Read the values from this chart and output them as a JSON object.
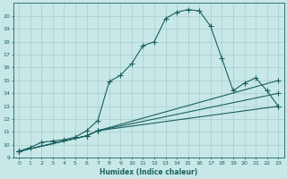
{
  "xlabel": "Humidex (Indice chaleur)",
  "xlim": [
    -0.5,
    23.5
  ],
  "ylim": [
    9,
    21
  ],
  "bg_color": "#c8e8e8",
  "grid_color": "#a8cccc",
  "line_color": "#1a6060",
  "line1_x": [
    0,
    1,
    2,
    3,
    4,
    5,
    6,
    7,
    8,
    9,
    10,
    11,
    12,
    13,
    14,
    15,
    16,
    17,
    18,
    19,
    20,
    21,
    22,
    23
  ],
  "line1_y": [
    9.5,
    9.8,
    10.2,
    10.3,
    10.4,
    10.6,
    11.1,
    11.9,
    14.9,
    15.4,
    16.3,
    17.7,
    18.0,
    19.8,
    20.3,
    20.5,
    20.4,
    19.2,
    16.7,
    14.2,
    14.8,
    15.2,
    14.2,
    13.0
  ],
  "line2_x": [
    0,
    6,
    7,
    23
  ],
  "line2_y": [
    9.5,
    10.7,
    11.1,
    13.0
  ],
  "line3_x": [
    0,
    6,
    7,
    23
  ],
  "line3_y": [
    9.5,
    10.7,
    11.1,
    14.0
  ],
  "line4_x": [
    0,
    6,
    7,
    23
  ],
  "line4_y": [
    9.5,
    10.7,
    11.1,
    15.0
  ],
  "ytick_vals": [
    9,
    10,
    11,
    12,
    13,
    14,
    15,
    16,
    17,
    18,
    19,
    20
  ],
  "xtick_vals": [
    0,
    1,
    2,
    3,
    4,
    5,
    6,
    7,
    8,
    9,
    10,
    11,
    12,
    13,
    14,
    15,
    16,
    17,
    18,
    19,
    20,
    21,
    22,
    23
  ],
  "marker_size": 2.5,
  "lw": 0.8
}
